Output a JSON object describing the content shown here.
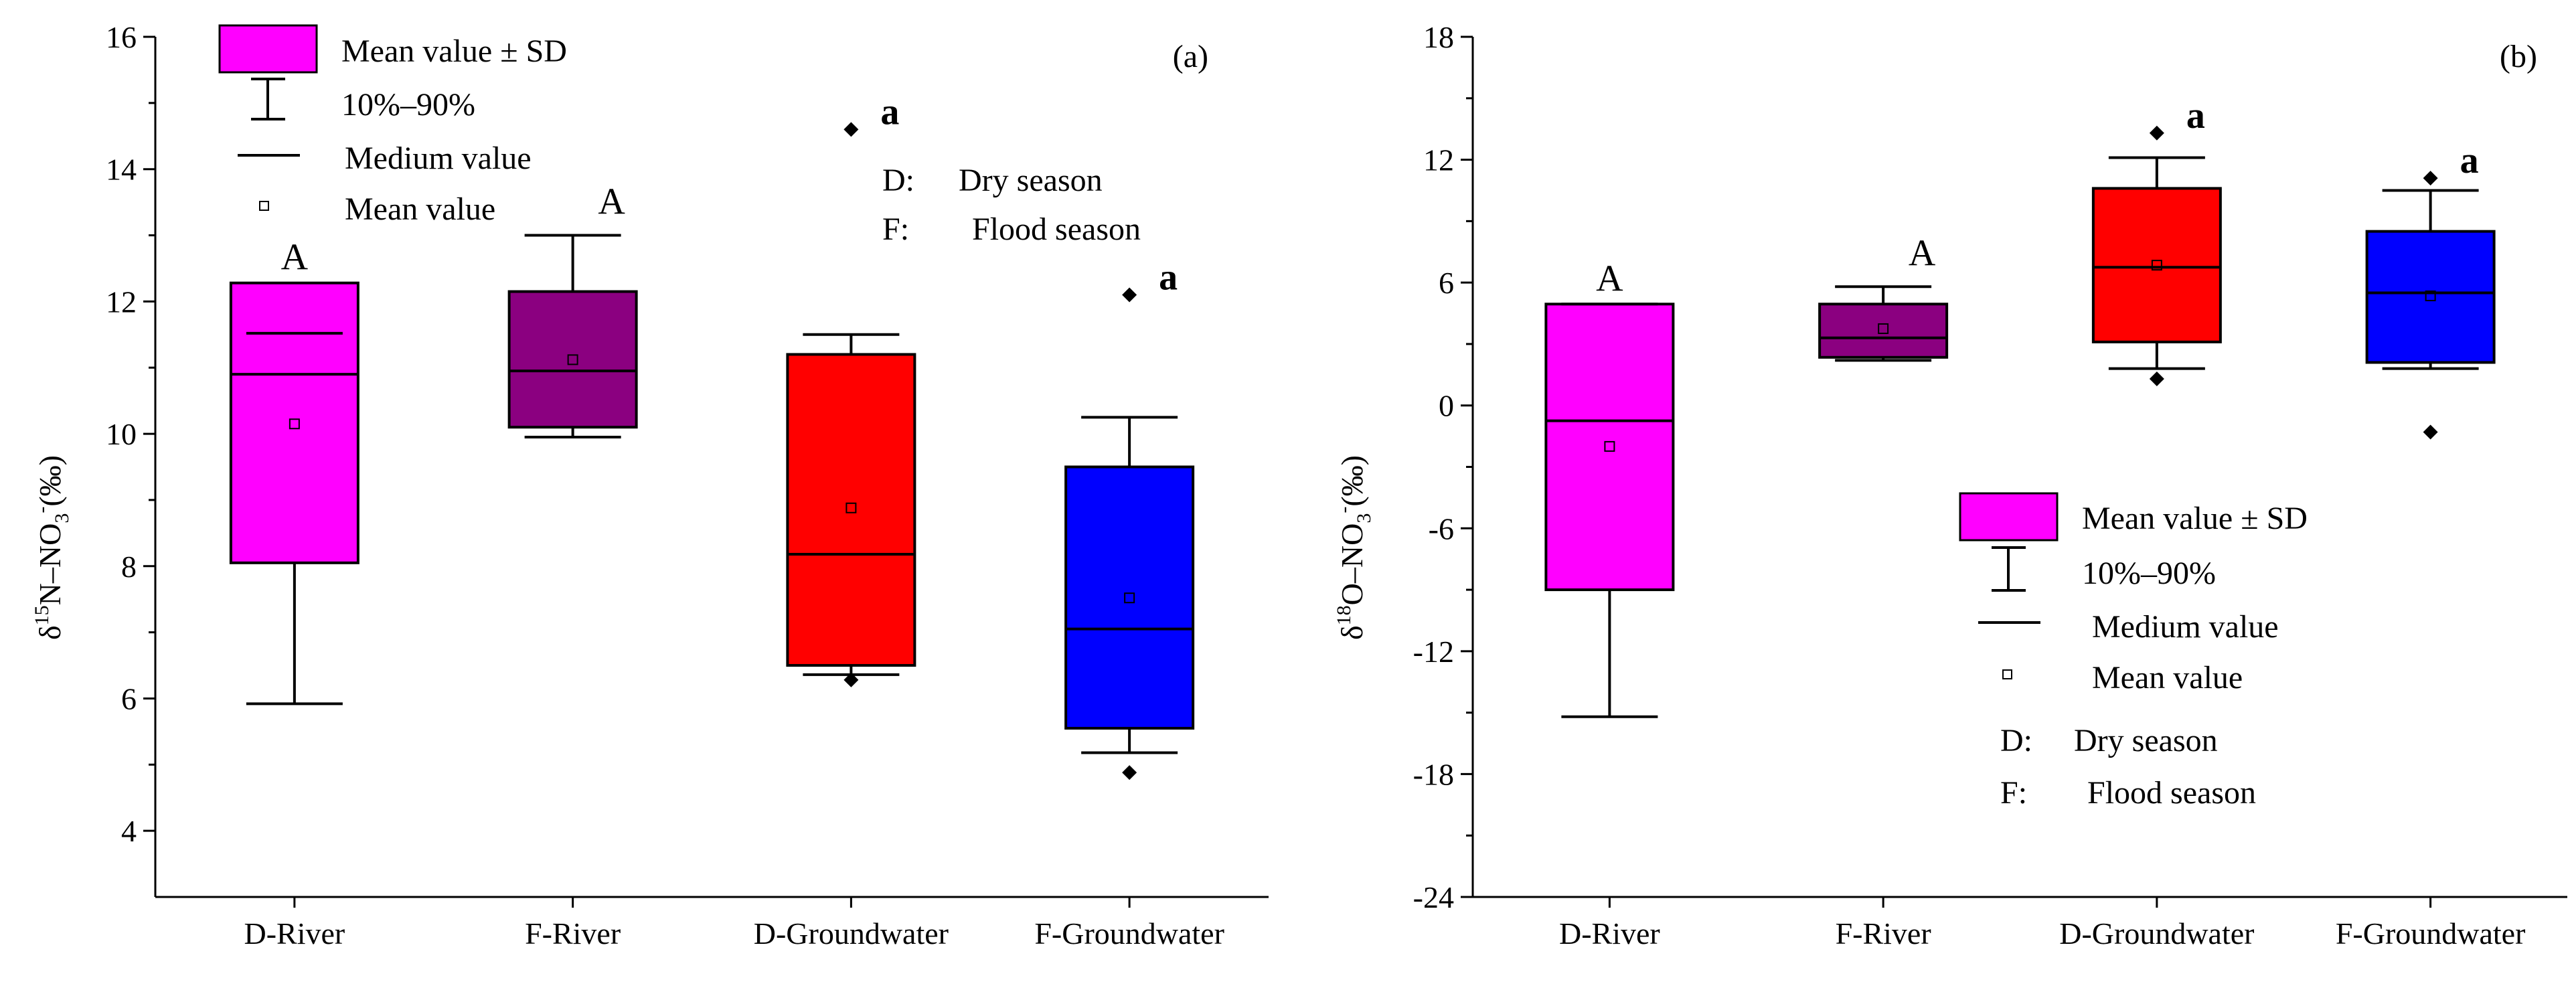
{
  "legend_items": [
    "Mean value ± SD",
    "10%–90%",
    "Medium value",
    "Mean value"
  ],
  "season_notes": [
    {
      "code": "D:",
      "text": "Dry season"
    },
    {
      "code": "F:",
      "text": "Flood season"
    }
  ],
  "chart_data": [
    {
      "type": "box",
      "panel_label": "(a)",
      "ylabel_parts": {
        "delta": "δ",
        "mass": "15",
        "mid": "N–NO",
        "sub": "3",
        "sup": "-",
        "unit": "(‰)"
      },
      "ylim": [
        3,
        16
      ],
      "yticks": [
        4,
        6,
        8,
        10,
        12,
        14,
        16
      ],
      "categories": [
        "D-River",
        "F-River",
        "D-Groundwater",
        "F-Groundwater"
      ],
      "colors": [
        "#ff00ff",
        "#8b0080",
        "#ff0000",
        "#0000ff"
      ],
      "boxes": [
        {
          "category": "D-River",
          "box_low": 8.05,
          "box_high": 12.28,
          "median": 10.9,
          "mean": 10.15,
          "whisker_low": 5.92,
          "whisker_high": 11.52,
          "outliers": [],
          "letter": "A"
        },
        {
          "category": "F-River",
          "box_low": 10.1,
          "box_high": 12.15,
          "median": 10.95,
          "mean": 11.12,
          "whisker_low": 9.95,
          "whisker_high": 13.0,
          "outliers": [],
          "letter": "A"
        },
        {
          "category": "D-Groundwater",
          "box_low": 6.5,
          "box_high": 11.2,
          "median": 8.18,
          "mean": 8.88,
          "whisker_low": 6.36,
          "whisker_high": 11.5,
          "outliers": [
            14.6,
            6.28
          ],
          "letter": "a"
        },
        {
          "category": "F-Groundwater",
          "box_low": 5.55,
          "box_high": 9.5,
          "median": 7.05,
          "mean": 7.52,
          "whisker_low": 5.18,
          "whisker_high": 10.25,
          "outliers": [
            12.1,
            4.88
          ],
          "letter": "a"
        }
      ]
    },
    {
      "type": "box",
      "panel_label": "(b)",
      "ylabel_parts": {
        "delta": "δ",
        "mass": "18",
        "mid": "O–NO",
        "sub": "3",
        "sup": "-",
        "unit": "(‰)"
      },
      "ylim": [
        -24,
        18
      ],
      "yticks": [
        -24,
        -18,
        -12,
        -6,
        0,
        6,
        12,
        18
      ],
      "categories": [
        "D-River",
        "F-River",
        "D-Groundwater",
        "F-Groundwater"
      ],
      "colors": [
        "#ff00ff",
        "#8b0080",
        "#ff0000",
        "#0000ff"
      ],
      "boxes": [
        {
          "category": "D-River",
          "box_low": -9.0,
          "box_high": 4.95,
          "median": -0.75,
          "mean": -2.0,
          "whisker_low": -15.2,
          "whisker_high": 4.95,
          "outliers": [],
          "letter": "A"
        },
        {
          "category": "F-River",
          "box_low": 2.35,
          "box_high": 4.95,
          "median": 3.3,
          "mean": 3.75,
          "whisker_low": 2.2,
          "whisker_high": 5.8,
          "outliers": [],
          "letter": "A"
        },
        {
          "category": "D-Groundwater",
          "box_low": 3.1,
          "box_high": 10.6,
          "median": 6.75,
          "mean": 6.85,
          "whisker_low": 1.8,
          "whisker_high": 12.1,
          "outliers": [
            13.3,
            1.3
          ],
          "letter": "a"
        },
        {
          "category": "F-Groundwater",
          "box_low": 2.1,
          "box_high": 8.5,
          "median": 5.5,
          "mean": 5.35,
          "whisker_low": 1.8,
          "whisker_high": 10.5,
          "outliers": [
            11.1,
            -1.3
          ],
          "letter": "a"
        }
      ]
    }
  ]
}
